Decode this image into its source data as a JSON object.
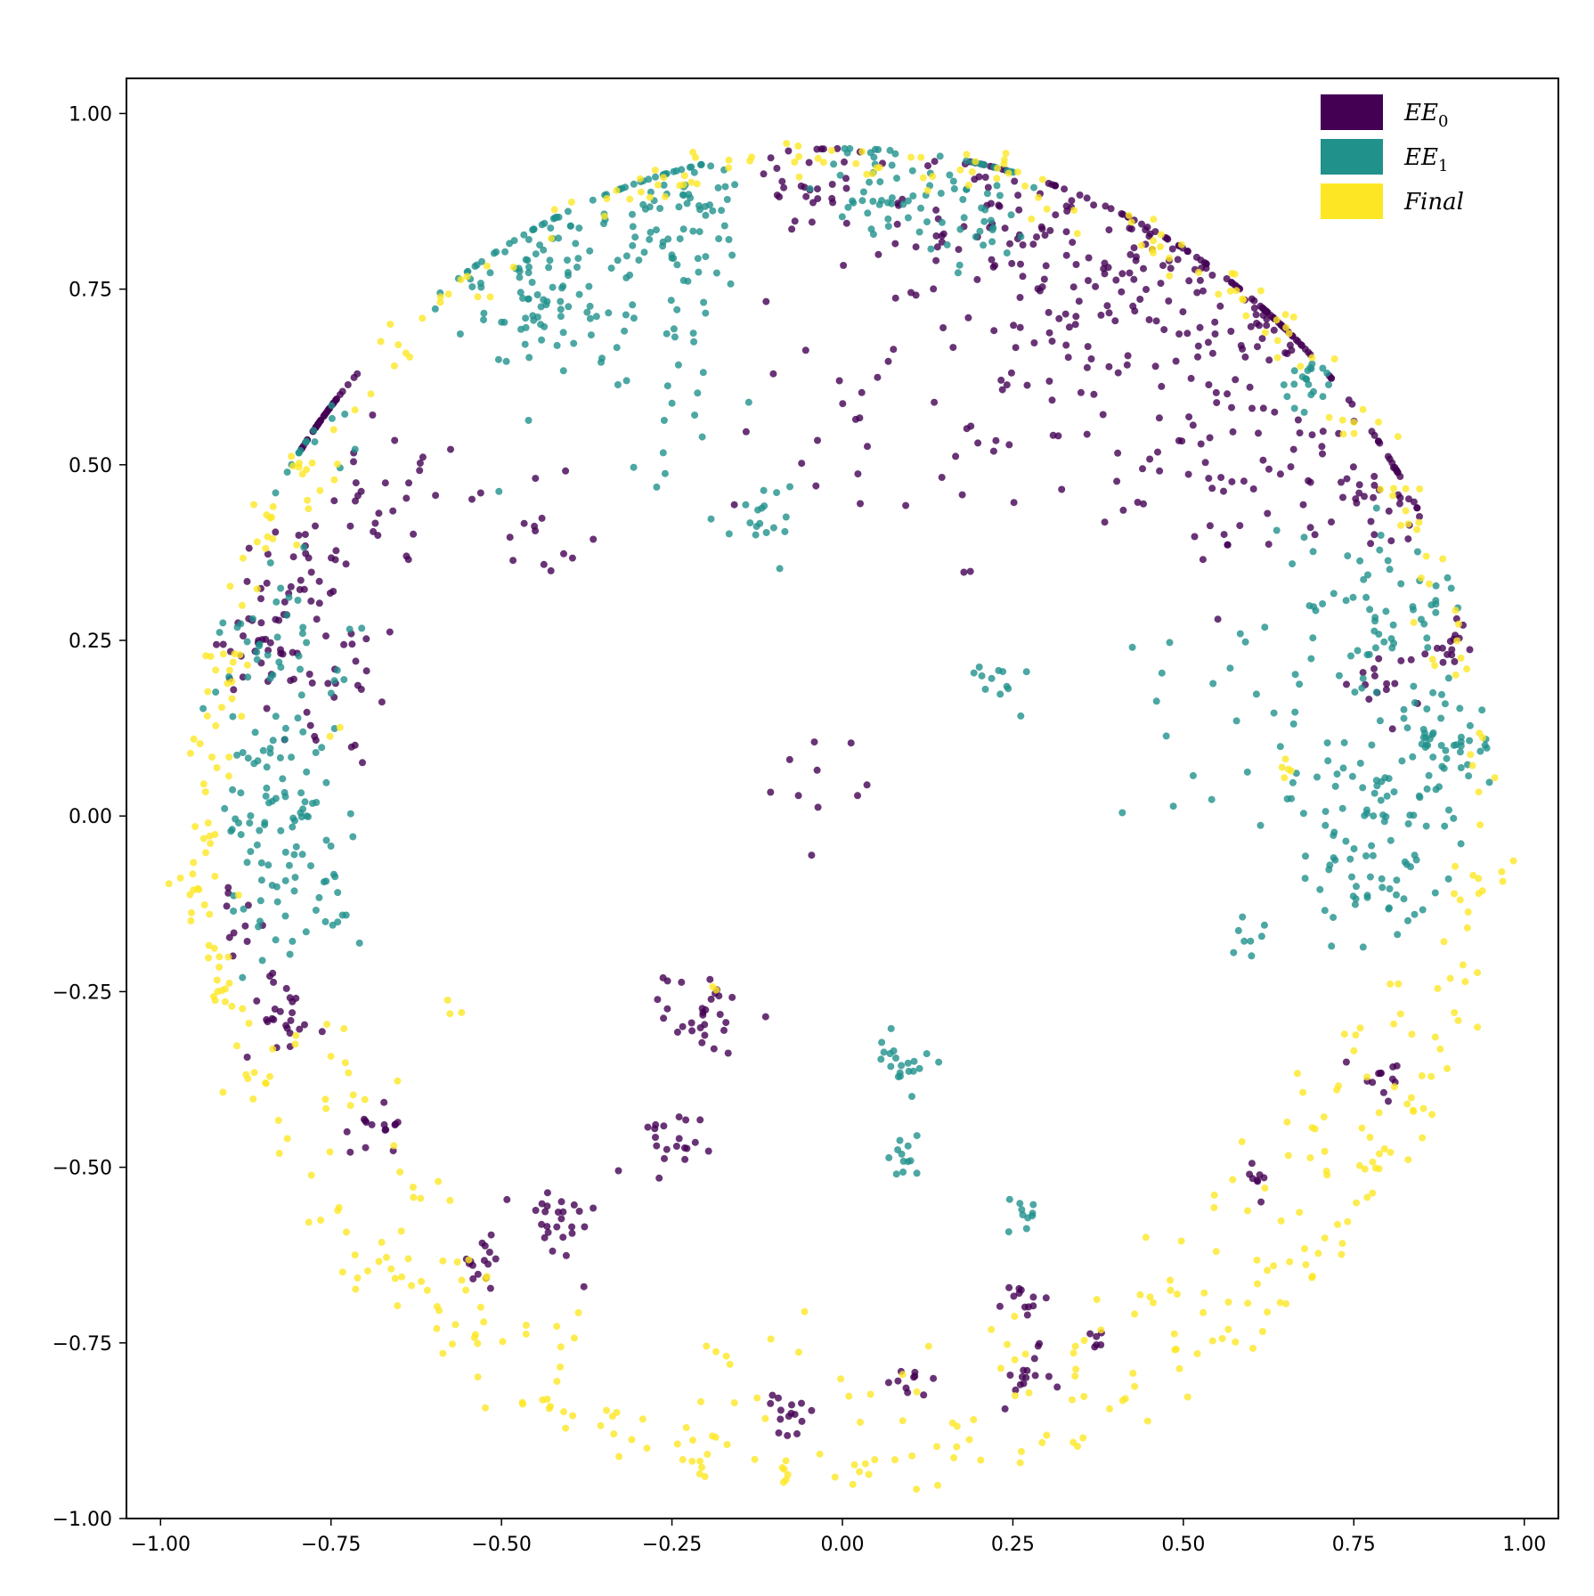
{
  "chart_data": {
    "type": "scatter",
    "title": "",
    "xlabel": "",
    "ylabel": "",
    "xlim": [
      -1.05,
      1.05
    ],
    "ylim": [
      -1.0,
      1.05
    ],
    "grid": false,
    "legend_position": "top-right",
    "x_ticks": [
      {
        "value": -1.0,
        "label": "−1.00"
      },
      {
        "value": -0.75,
        "label": "−0.75"
      },
      {
        "value": -0.5,
        "label": "−0.50"
      },
      {
        "value": -0.25,
        "label": "−0.25"
      },
      {
        "value": 0.0,
        "label": "0.00"
      },
      {
        "value": 0.25,
        "label": "0.25"
      },
      {
        "value": 0.5,
        "label": "0.50"
      },
      {
        "value": 0.75,
        "label": "0.75"
      },
      {
        "value": 1.0,
        "label": "1.00"
      }
    ],
    "y_ticks": [
      {
        "value": 1.0,
        "label": "1.00"
      },
      {
        "value": 0.75,
        "label": "0.75"
      },
      {
        "value": 0.5,
        "label": "0.50"
      },
      {
        "value": 0.25,
        "label": "0.25"
      },
      {
        "value": 0.0,
        "label": "0.00"
      },
      {
        "value": -0.25,
        "label": "−0.25"
      },
      {
        "value": -0.5,
        "label": "−0.50"
      },
      {
        "value": -0.75,
        "label": "−0.75"
      },
      {
        "value": -1.0,
        "label": "−1.00"
      }
    ],
    "series": [
      {
        "name": "EE_0",
        "legend_base": "EE",
        "legend_sub": "0",
        "color": "#440154",
        "clusters": [
          {
            "x": -0.8,
            "y": 0.6,
            "spread": 0.04,
            "count": 40
          },
          {
            "x": -0.65,
            "y": 0.45,
            "spread": 0.05,
            "count": 25
          },
          {
            "x": -0.8,
            "y": 0.35,
            "spread": 0.04,
            "count": 30
          },
          {
            "x": -0.85,
            "y": 0.25,
            "spread": 0.04,
            "count": 30
          },
          {
            "x": -0.75,
            "y": 0.18,
            "spread": 0.06,
            "count": 30
          },
          {
            "x": -0.05,
            "y": 0.9,
            "spread": 0.04,
            "count": 30
          },
          {
            "x": 0.2,
            "y": 0.85,
            "spread": 0.08,
            "count": 70
          },
          {
            "x": 0.45,
            "y": 0.78,
            "spread": 0.09,
            "count": 110
          },
          {
            "x": 0.65,
            "y": 0.72,
            "spread": 0.06,
            "count": 60
          },
          {
            "x": 0.3,
            "y": 0.65,
            "spread": 0.12,
            "count": 60
          },
          {
            "x": 0.55,
            "y": 0.5,
            "spread": 0.08,
            "count": 50
          },
          {
            "x": 0.75,
            "y": 0.5,
            "spread": 0.06,
            "count": 40
          },
          {
            "x": 0.8,
            "y": 0.45,
            "spread": 0.03,
            "count": 20
          },
          {
            "x": 0.9,
            "y": 0.25,
            "spread": 0.02,
            "count": 15
          },
          {
            "x": 0.8,
            "y": 0.19,
            "spread": 0.03,
            "count": 15
          },
          {
            "x": -0.03,
            "y": 0.06,
            "spread": 0.03,
            "count": 10
          },
          {
            "x": -0.2,
            "y": -0.28,
            "spread": 0.03,
            "count": 30
          },
          {
            "x": -0.27,
            "y": -0.48,
            "spread": 0.03,
            "count": 20
          },
          {
            "x": -0.42,
            "y": -0.58,
            "spread": 0.03,
            "count": 25
          },
          {
            "x": -0.53,
            "y": -0.64,
            "spread": 0.02,
            "count": 15
          },
          {
            "x": -0.82,
            "y": -0.28,
            "spread": 0.03,
            "count": 25
          },
          {
            "x": -0.68,
            "y": -0.44,
            "spread": 0.02,
            "count": 15
          },
          {
            "x": -0.88,
            "y": -0.15,
            "spread": 0.02,
            "count": 10
          },
          {
            "x": 0.27,
            "y": -0.8,
            "spread": 0.02,
            "count": 15
          },
          {
            "x": 0.26,
            "y": -0.7,
            "spread": 0.02,
            "count": 12
          },
          {
            "x": 0.1,
            "y": -0.8,
            "spread": 0.015,
            "count": 10
          },
          {
            "x": -0.08,
            "y": -0.86,
            "spread": 0.02,
            "count": 15
          },
          {
            "x": 0.79,
            "y": -0.37,
            "spread": 0.02,
            "count": 12
          },
          {
            "x": 0.6,
            "y": -0.51,
            "spread": 0.015,
            "count": 8
          },
          {
            "x": 0.37,
            "y": -0.74,
            "spread": 0.01,
            "count": 6
          },
          {
            "x": -0.45,
            "y": 0.4,
            "spread": 0.05,
            "count": 15
          },
          {
            "x": 0.05,
            "y": 0.55,
            "spread": 0.1,
            "count": 20
          }
        ]
      },
      {
        "name": "EE_1",
        "legend_base": "EE",
        "legend_sub": "1",
        "color": "#21918c",
        "clusters": [
          {
            "x": -0.45,
            "y": 0.78,
            "spread": 0.06,
            "count": 90
          },
          {
            "x": -0.25,
            "y": 0.87,
            "spread": 0.06,
            "count": 80
          },
          {
            "x": 0.05,
            "y": 0.9,
            "spread": 0.04,
            "count": 40
          },
          {
            "x": 0.2,
            "y": 0.88,
            "spread": 0.05,
            "count": 50
          },
          {
            "x": -0.3,
            "y": 0.7,
            "spread": 0.1,
            "count": 60
          },
          {
            "x": 0.68,
            "y": 0.62,
            "spread": 0.02,
            "count": 20
          },
          {
            "x": 0.8,
            "y": 0.3,
            "spread": 0.06,
            "count": 60
          },
          {
            "x": 0.55,
            "y": 0.2,
            "spread": 0.08,
            "count": 20
          },
          {
            "x": 0.88,
            "y": 0.1,
            "spread": 0.04,
            "count": 50
          },
          {
            "x": 0.75,
            "y": 0.02,
            "spread": 0.07,
            "count": 60
          },
          {
            "x": 0.8,
            "y": -0.08,
            "spread": 0.06,
            "count": 40
          },
          {
            "x": 0.22,
            "y": 0.2,
            "spread": 0.02,
            "count": 12
          },
          {
            "x": -0.12,
            "y": 0.42,
            "spread": 0.03,
            "count": 18
          },
          {
            "x": -0.82,
            "y": 0.25,
            "spread": 0.05,
            "count": 40
          },
          {
            "x": -0.85,
            "y": 0.1,
            "spread": 0.03,
            "count": 15
          },
          {
            "x": -0.82,
            "y": 0.0,
            "spread": 0.05,
            "count": 50
          },
          {
            "x": -0.8,
            "y": -0.12,
            "spread": 0.05,
            "count": 40
          },
          {
            "x": 0.09,
            "y": -0.35,
            "spread": 0.02,
            "count": 20
          },
          {
            "x": 0.09,
            "y": -0.48,
            "spread": 0.015,
            "count": 12
          },
          {
            "x": 0.26,
            "y": -0.57,
            "spread": 0.015,
            "count": 10
          },
          {
            "x": 0.59,
            "y": -0.17,
            "spread": 0.015,
            "count": 8
          },
          {
            "x": -0.8,
            "y": 0.55,
            "spread": 0.04,
            "count": 15
          }
        ]
      },
      {
        "name": "Final",
        "legend_base": "Final",
        "legend_sub": "",
        "color": "#fde725",
        "ring": [
          {
            "r": 0.935,
            "t1": 0,
            "t2": 360,
            "count": 420,
            "jitter": 0.02
          },
          {
            "r": 0.84,
            "t1": 200,
            "t2": 345,
            "count": 140,
            "jitter": 0.05
          }
        ],
        "clusters": [
          {
            "x": 0.65,
            "y": 0.07,
            "spread": 0.01,
            "count": 5
          },
          {
            "x": -0.2,
            "y": -0.24,
            "spread": 0.01,
            "count": 2
          },
          {
            "x": -0.57,
            "y": -0.28,
            "spread": 0.01,
            "count": 3
          },
          {
            "x": -0.75,
            "y": 0.12,
            "spread": 0.01,
            "count": 2
          }
        ]
      }
    ]
  }
}
